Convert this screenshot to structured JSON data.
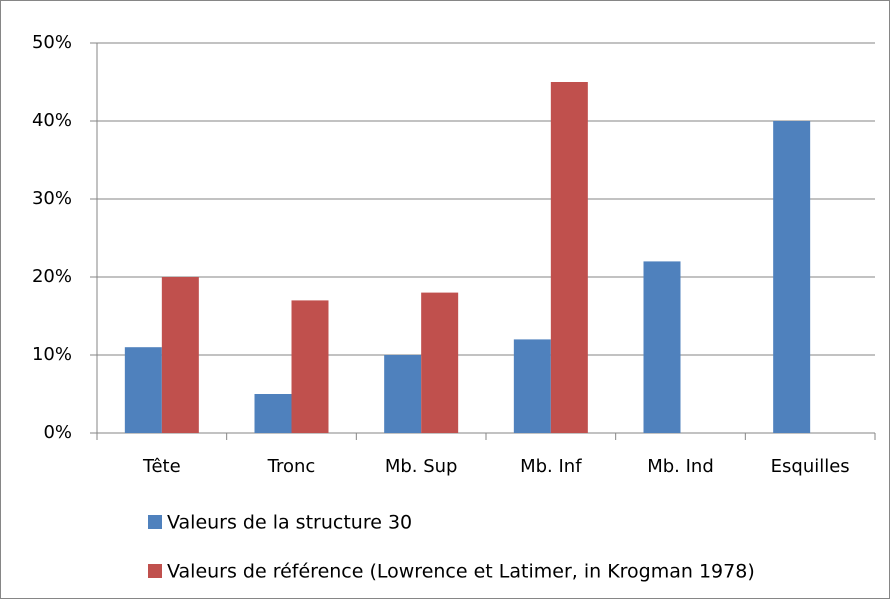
{
  "chart_data": {
    "type": "bar",
    "categories": [
      "Tête",
      "Tronc",
      "Mb. Sup",
      "Mb. Inf",
      "Mb. Ind",
      "Esquilles"
    ],
    "series": [
      {
        "name": "Valeurs de la structure 30",
        "color": "#4f81bd",
        "values": [
          11,
          5,
          10,
          12,
          22,
          40
        ]
      },
      {
        "name": "Valeurs de référence (Lowrence et Latimer, in Krogman 1978)",
        "color": "#c0504d",
        "values": [
          20,
          17,
          18,
          45,
          null,
          null
        ]
      }
    ],
    "ylim": [
      0,
      50
    ],
    "yticks": [
      {
        "value": 0,
        "label": "0%"
      },
      {
        "value": 10,
        "label": "10%"
      },
      {
        "value": 20,
        "label": "20%"
      },
      {
        "value": 30,
        "label": "30%"
      },
      {
        "value": 40,
        "label": "40%"
      },
      {
        "value": 50,
        "label": "50%"
      }
    ],
    "grid": true,
    "legend": "bottom"
  }
}
